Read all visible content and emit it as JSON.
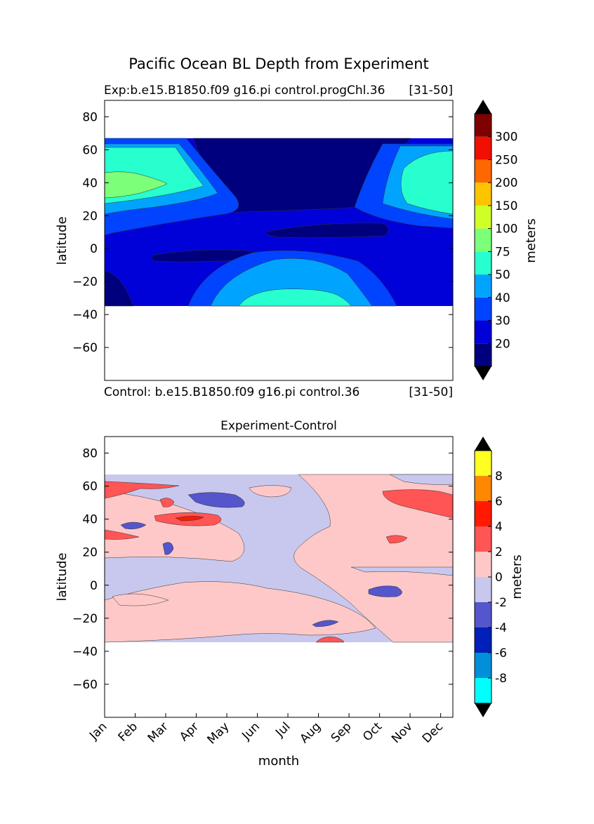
{
  "figure": {
    "title": "Pacific Ocean BL Depth from Experiment"
  },
  "chart_data": [
    {
      "type": "heatmap",
      "title_left": "Exp:b.e15.B1850.f09 g16.pi control.progChl.36",
      "title_right": "[31-50]",
      "xlabel": "",
      "ylabel": "latitude",
      "ylim": [
        -80,
        90
      ],
      "yticks": [
        80,
        60,
        40,
        20,
        0,
        -20,
        -40,
        -60
      ],
      "ytick_labels": [
        "80",
        "60",
        "40",
        "20",
        "0",
        "−20",
        "−40",
        "−60"
      ],
      "data_lat_range": [
        -34,
        67
      ],
      "colorbar": {
        "label": "meters",
        "extend": "both",
        "levels": [
          20,
          30,
          40,
          50,
          75,
          100,
          150,
          200,
          250,
          300
        ],
        "labels": [
          "20",
          "30",
          "40",
          "50",
          "75",
          "100",
          "150",
          "200",
          "250",
          "300"
        ],
        "colors": [
          "#00007f",
          "#0000d8",
          "#0044ff",
          "#00a4ff",
          "#27ffcf",
          "#7cff79",
          "#cfff27",
          "#ffc400",
          "#ff6800",
          "#f00f00",
          "#7f0000"
        ],
        "under_color": "#000000",
        "over_color": "#000000"
      }
    },
    {
      "type": "heatmap",
      "title_left": "Control: b.e15.B1850.f09 g16.pi control.36",
      "title_right": "[31-50]",
      "subtitle": "Experiment-Control",
      "xlabel": "month",
      "ylabel": "latitude",
      "ylim": [
        -80,
        90
      ],
      "x_categories": [
        "Jan",
        "Feb",
        "Mar",
        "Apr",
        "May",
        "Jun",
        "Jul",
        "Aug",
        "Sep",
        "Oct",
        "Nov",
        "Dec"
      ],
      "yticks": [
        80,
        60,
        40,
        20,
        0,
        -20,
        -40,
        -60
      ],
      "ytick_labels": [
        "80",
        "60",
        "40",
        "20",
        "0",
        "−20",
        "−40",
        "−60"
      ],
      "data_lat_range": [
        -34,
        67
      ],
      "colorbar": {
        "label": "meters",
        "extend": "both",
        "levels": [
          -8,
          -6,
          -4,
          -2,
          0,
          2,
          4,
          6,
          8
        ],
        "labels": [
          "-8",
          "-6",
          "-4",
          "-2",
          "0",
          "2",
          "4",
          "6",
          "8"
        ],
        "colors": [
          "#00ffff",
          "#008fd8",
          "#0020b8",
          "#5555cc",
          "#c8c8ee",
          "#ffc8c8",
          "#ff5555",
          "#ff1a00",
          "#ff8800",
          "#ffff22"
        ],
        "under_color": "#000000",
        "over_color": "#000000"
      }
    }
  ]
}
